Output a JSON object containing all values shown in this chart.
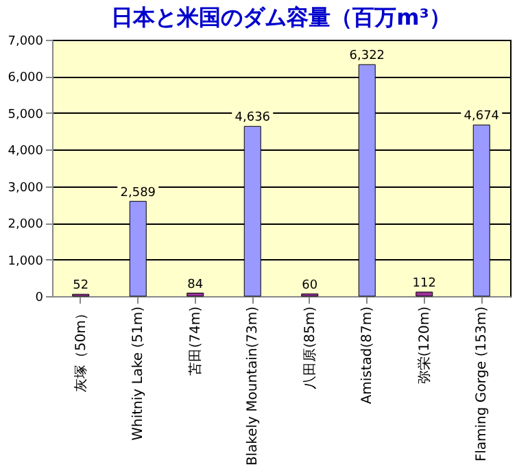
{
  "chart_data": {
    "type": "bar",
    "title": "日本と米国のダム容量（百万m³）",
    "categories": [
      "灰塚（50m）",
      "Whitniy Lake (51m)",
      "苫田(74m)",
      "Blakely Mountain(73m)",
      "八田原(85m)",
      "Amistad(87m)",
      "弥栄(120m)",
      "Flaming Gorge (153m)"
    ],
    "values": [
      52,
      2589,
      84,
      4636,
      60,
      6322,
      112,
      4674
    ],
    "value_labels": [
      "52",
      "2,589",
      "84",
      "4,636",
      "60",
      "6,322",
      "112",
      "4,674"
    ],
    "colors": [
      "#993399",
      "#9999ff",
      "#993399",
      "#9999ff",
      "#993399",
      "#9999ff",
      "#993399",
      "#9999ff"
    ],
    "ylim": [
      0,
      7000
    ],
    "yticks": [
      0,
      {
        "value": 1000,
        "label": "1,000"
      },
      {
        "value": 2000,
        "label": "2,000"
      },
      {
        "value": 3000,
        "label": "3,000"
      },
      {
        "value": 4000,
        "label": "4,000"
      },
      {
        "value": 5000,
        "label": "5,000"
      },
      {
        "value": 6000,
        "label": "6,000"
      },
      {
        "value": 7000,
        "label": "7,000"
      }
    ],
    "grid": "y"
  }
}
